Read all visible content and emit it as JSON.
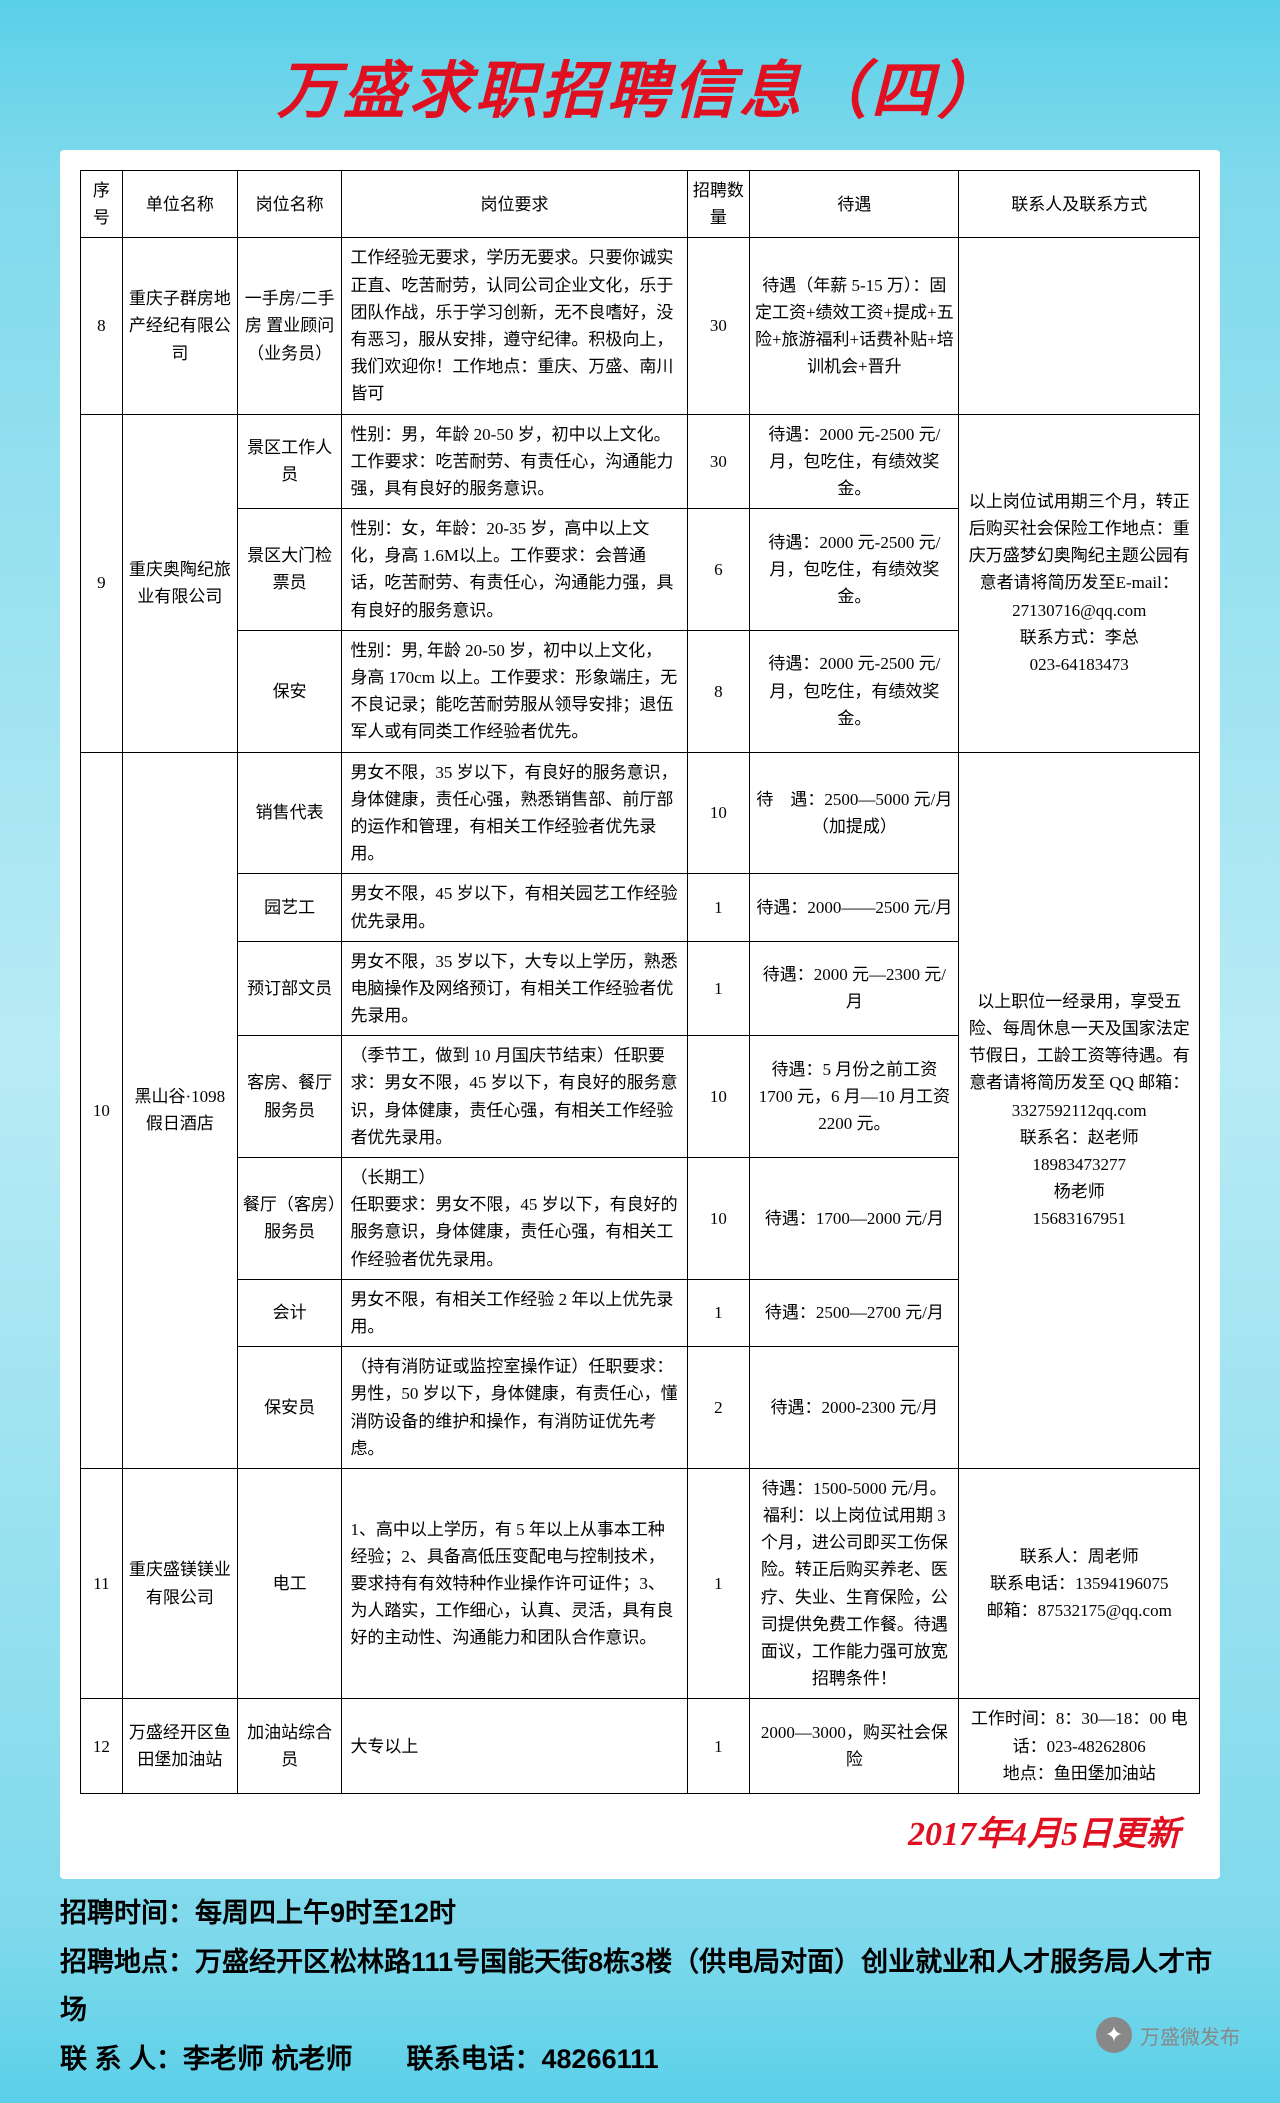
{
  "title": "万盛求职招聘信息（四）",
  "headers": {
    "seq": "序号",
    "company": "单位名称",
    "position": "岗位名称",
    "requirement": "岗位要求",
    "quantity": "招聘数量",
    "salary": "待遇",
    "contact": "联系人及联系方式"
  },
  "rows": [
    {
      "seq": "8",
      "company": "重庆子群房地产经纪有限公司",
      "position": "一手房/二手房 置业顾问（业务员）",
      "requirement": "工作经验无要求，学历无要求。只要你诚实正直、吃苦耐劳，认同公司企业文化，乐于团队作战，乐于学习创新，无不良嗜好，没有恶习，服从安排，遵守纪律。积极向上，我们欢迎你！工作地点：重庆、万盛、南川皆可",
      "quantity": "30",
      "salary": "待遇（年薪 5-15 万）：固定工资+绩效工资+提成+五险+旅游福利+话费补贴+培训机会+晋升",
      "contact": ""
    },
    {
      "seq": "9",
      "company": "重庆奥陶纪旅业有限公司",
      "positions": [
        {
          "position": "景区工作人员",
          "requirement": "性别：男，年龄 20-50 岁，初中以上文化。工作要求：吃苦耐劳、有责任心，沟通能力强，具有良好的服务意识。",
          "quantity": "30",
          "salary": "待遇：2000 元-2500 元/月，包吃住，有绩效奖金。"
        },
        {
          "position": "景区大门检票员",
          "requirement": "性别：女，年龄：20-35 岁，高中以上文化，身高 1.6M以上。工作要求：会普通话，吃苦耐劳、有责任心，沟通能力强，具有良好的服务意识。",
          "quantity": "6",
          "salary": "待遇：2000 元-2500 元/月，包吃住，有绩效奖金。"
        },
        {
          "position": "保安",
          "requirement": "性别：男, 年龄 20-50 岁，初中以上文化，身高 170cm 以上。工作要求：形象端庄，无不良记录；能吃苦耐劳服从领导安排；退伍军人或有同类工作经验者优先。",
          "quantity": "8",
          "salary": "待遇：2000 元-2500 元/月，包吃住，有绩效奖金。"
        }
      ],
      "contact": "以上岗位试用期三个月，转正后购买社会保险工作地点：重庆万盛梦幻奥陶纪主题公园有意者请将简历发至E-mail：27130716@qq.com\n联系方式：李总\n023-64183473"
    },
    {
      "seq": "10",
      "company": "黑山谷·1098 假日酒店",
      "positions": [
        {
          "position": "销售代表",
          "requirement": "男女不限，35 岁以下，有良好的服务意识，身体健康，责任心强，熟悉销售部、前厅部的运作和管理，有相关工作经验者优先录用。",
          "quantity": "10",
          "salary": "待　遇：2500—5000 元/月（加提成）"
        },
        {
          "position": "园艺工",
          "requirement": "男女不限，45 岁以下，有相关园艺工作经验优先录用。",
          "quantity": "1",
          "salary": "待遇：2000——2500 元/月"
        },
        {
          "position": "预订部文员",
          "requirement": "男女不限，35 岁以下，大专以上学历，熟悉电脑操作及网络预订，有相关工作经验者优先录用。",
          "quantity": "1",
          "salary": "待遇：2000 元—2300 元/月"
        },
        {
          "position": "客房、餐厅服务员",
          "requirement": "（季节工，做到 10 月国庆节结束）任职要求：男女不限，45 岁以下，有良好的服务意识，身体健康，责任心强，有相关工作经验者优先录用。",
          "quantity": "10",
          "salary": "待遇：5 月份之前工资 1700 元，6 月—10 月工资 2200 元。"
        },
        {
          "position": "餐厅（客房）服务员",
          "requirement": "（长期工）\n任职要求：男女不限，45 岁以下，有良好的服务意识，身体健康，责任心强，有相关工作经验者优先录用。",
          "quantity": "10",
          "salary": "待遇：1700—2000 元/月"
        },
        {
          "position": "会计",
          "requirement": "男女不限，有相关工作经验 2 年以上优先录用。",
          "quantity": "1",
          "salary": "待遇：2500—2700 元/月"
        },
        {
          "position": "保安员",
          "requirement": "（持有消防证或监控室操作证）任职要求：男性，50 岁以下，身体健康，有责任心，懂消防设备的维护和操作，有消防证优先考虑。",
          "quantity": "2",
          "salary": "待遇：2000-2300 元/月"
        }
      ],
      "contact": "以上职位一经录用，享受五险、每周休息一天及国家法定节假日，工龄工资等待遇。有意者请将简历发至 QQ 邮箱：3327592112qq.com\n联系名：赵老师\n18983473277\n杨老师\n15683167951"
    },
    {
      "seq": "11",
      "company": "重庆盛镁镁业有限公司",
      "position": "电工",
      "requirement": "1、高中以上学历，有 5 年以上从事本工种经验；2、具备高低压变配电与控制技术，要求持有有效特种作业操作许可证件；3、为人踏实，工作细心，认真、灵活，具有良好的主动性、沟通能力和团队合作意识。",
      "quantity": "1",
      "salary": "待遇：1500-5000 元/月。福利：以上岗位试用期 3 个月，进公司即买工伤保险。转正后购买养老、医疗、失业、生育保险，公司提供免费工作餐。待遇面议，工作能力强可放宽招聘条件！",
      "contact": "联系人：周老师\n联系电话：13594196075\n邮箱：87532175@qq.com"
    },
    {
      "seq": "12",
      "company": "万盛经开区鱼田堡加油站",
      "position": "加油站综合员",
      "requirement": "大专以上",
      "quantity": "1",
      "salary": "2000—3000，购买社会保险",
      "contact": "工作时间：8：30—18：00 电话：023-48262806\n地点：鱼田堡加油站"
    }
  ],
  "updateDate": "2017年4月5日更新",
  "footer": {
    "time": "招聘时间：每周四上午9时至12时",
    "address": "招聘地点：万盛经开区松林路111号国能天街8栋3楼（供电局对面）创业就业和人才服务局人才市场",
    "contact": "联 系 人：李老师 杭老师　　联系电话：48266111"
  },
  "wechat": "万盛微发布"
}
